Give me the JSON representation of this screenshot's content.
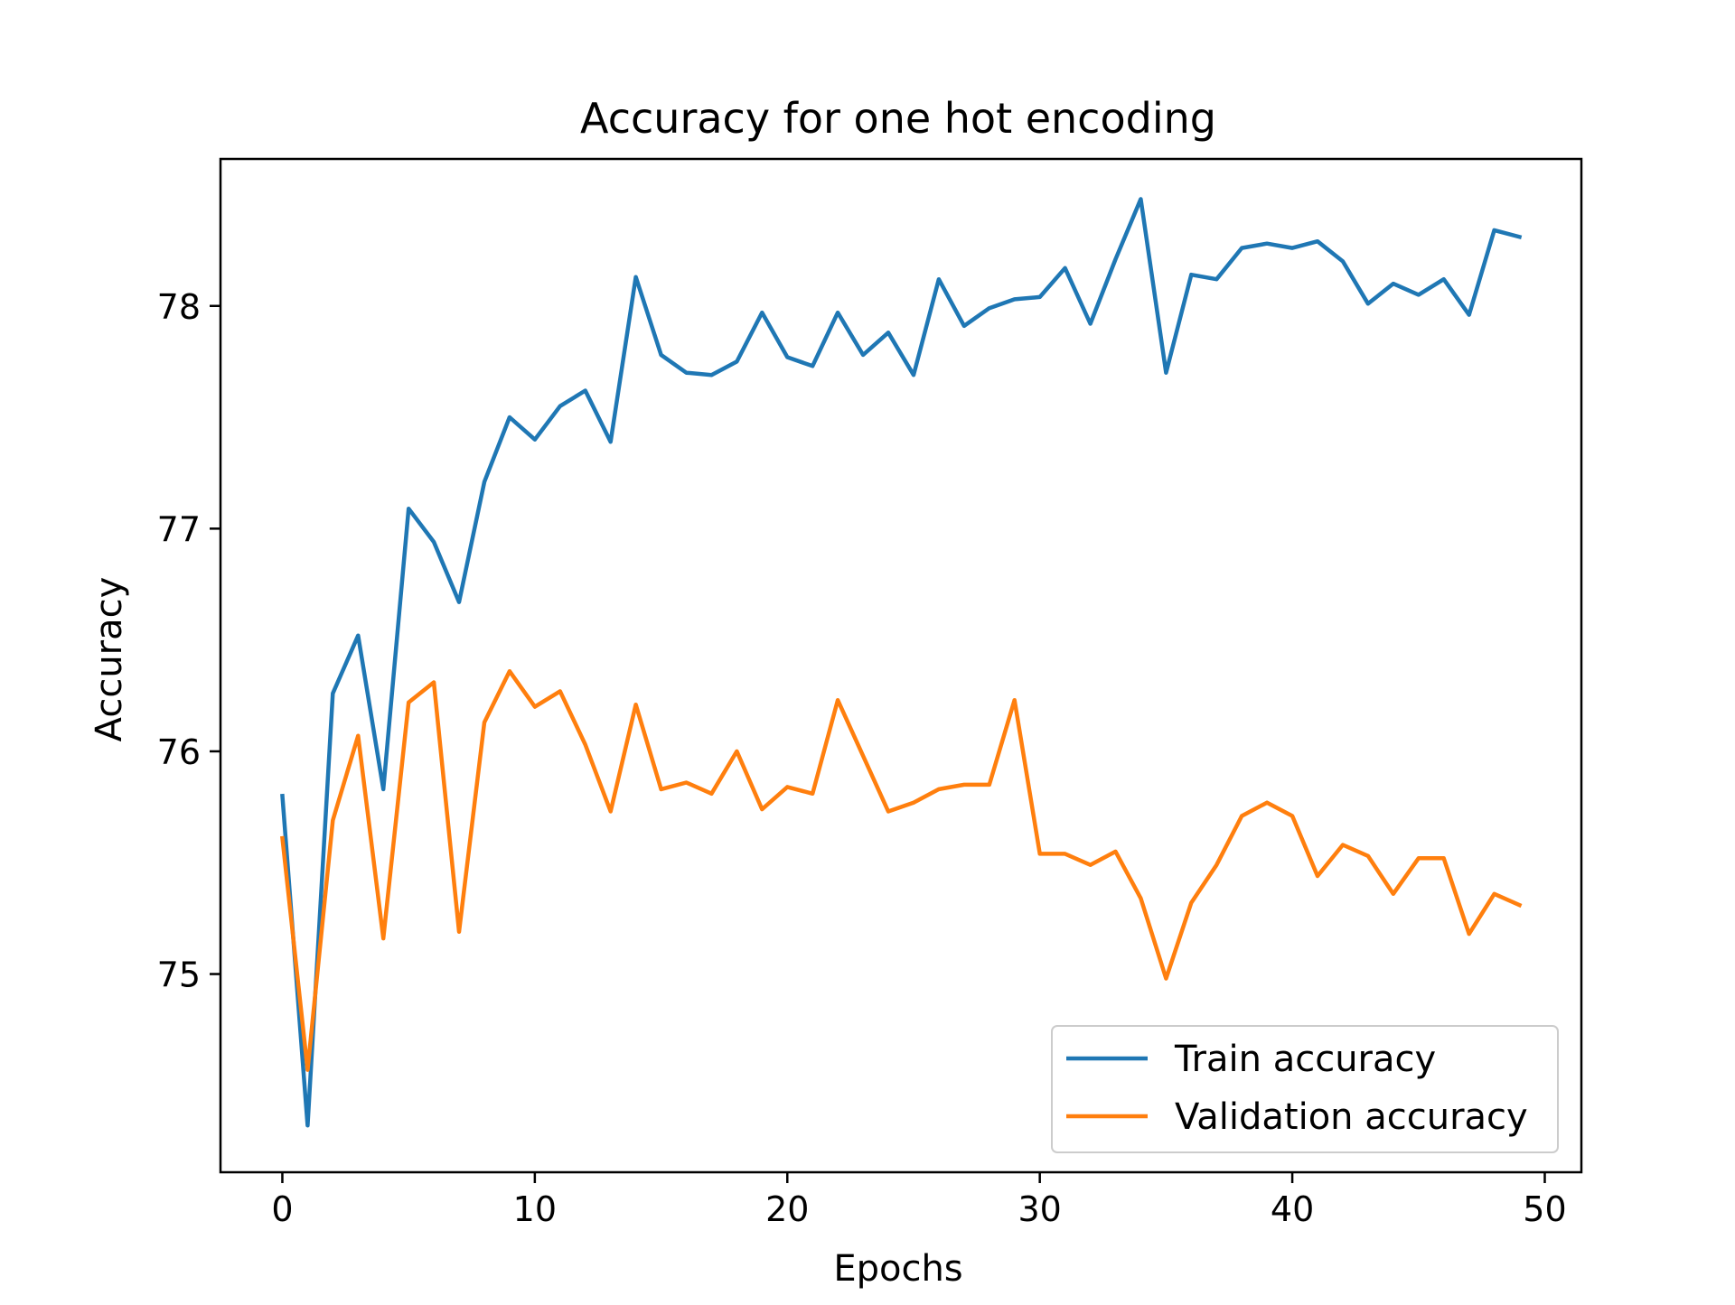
{
  "chart_data": {
    "type": "line",
    "title": "Accuracy for one hot encoding",
    "xlabel": "Epochs",
    "ylabel": "Accuracy",
    "xlim": [
      -2.45,
      51.45
    ],
    "ylim": [
      74.11,
      78.66
    ],
    "xticks": [
      0,
      10,
      20,
      30,
      40,
      50
    ],
    "yticks": [
      75,
      76,
      77,
      78
    ],
    "grid": false,
    "legend_position": "lower-right",
    "x": [
      0,
      1,
      2,
      3,
      4,
      5,
      6,
      7,
      8,
      9,
      10,
      11,
      12,
      13,
      14,
      15,
      16,
      17,
      18,
      19,
      20,
      21,
      22,
      23,
      24,
      25,
      26,
      27,
      28,
      29,
      30,
      31,
      32,
      33,
      34,
      35,
      36,
      37,
      38,
      39,
      40,
      41,
      42,
      43,
      44,
      45,
      46,
      47,
      48,
      49
    ],
    "series": [
      {
        "name": "Train accuracy",
        "color": "#1f77b4",
        "values": [
          75.8,
          74.32,
          76.26,
          76.52,
          75.83,
          77.09,
          76.94,
          76.67,
          77.21,
          77.5,
          77.4,
          77.55,
          77.62,
          77.39,
          78.13,
          77.78,
          77.7,
          77.69,
          77.75,
          77.97,
          77.77,
          77.73,
          77.97,
          77.78,
          77.88,
          77.69,
          78.12,
          77.91,
          77.99,
          78.03,
          78.04,
          78.17,
          77.92,
          78.21,
          78.48,
          77.7,
          78.14,
          78.12,
          78.26,
          78.28,
          78.26,
          78.29,
          78.2,
          78.01,
          78.1,
          78.05,
          78.12,
          77.96,
          78.34,
          78.31
        ]
      },
      {
        "name": "Validation accuracy",
        "color": "#ff7f0e",
        "values": [
          75.61,
          74.57,
          75.69,
          76.07,
          75.16,
          76.22,
          76.31,
          75.19,
          76.13,
          76.36,
          76.2,
          76.27,
          76.03,
          75.73,
          76.21,
          75.83,
          75.86,
          75.81,
          76.0,
          75.74,
          75.84,
          75.81,
          76.23,
          75.98,
          75.73,
          75.77,
          75.83,
          75.85,
          75.85,
          76.23,
          75.54,
          75.54,
          75.49,
          75.55,
          75.34,
          74.98,
          75.32,
          75.49,
          75.71,
          75.77,
          75.71,
          75.44,
          75.58,
          75.53,
          75.36,
          75.52,
          75.52,
          75.18,
          75.36,
          75.31
        ]
      }
    ]
  }
}
